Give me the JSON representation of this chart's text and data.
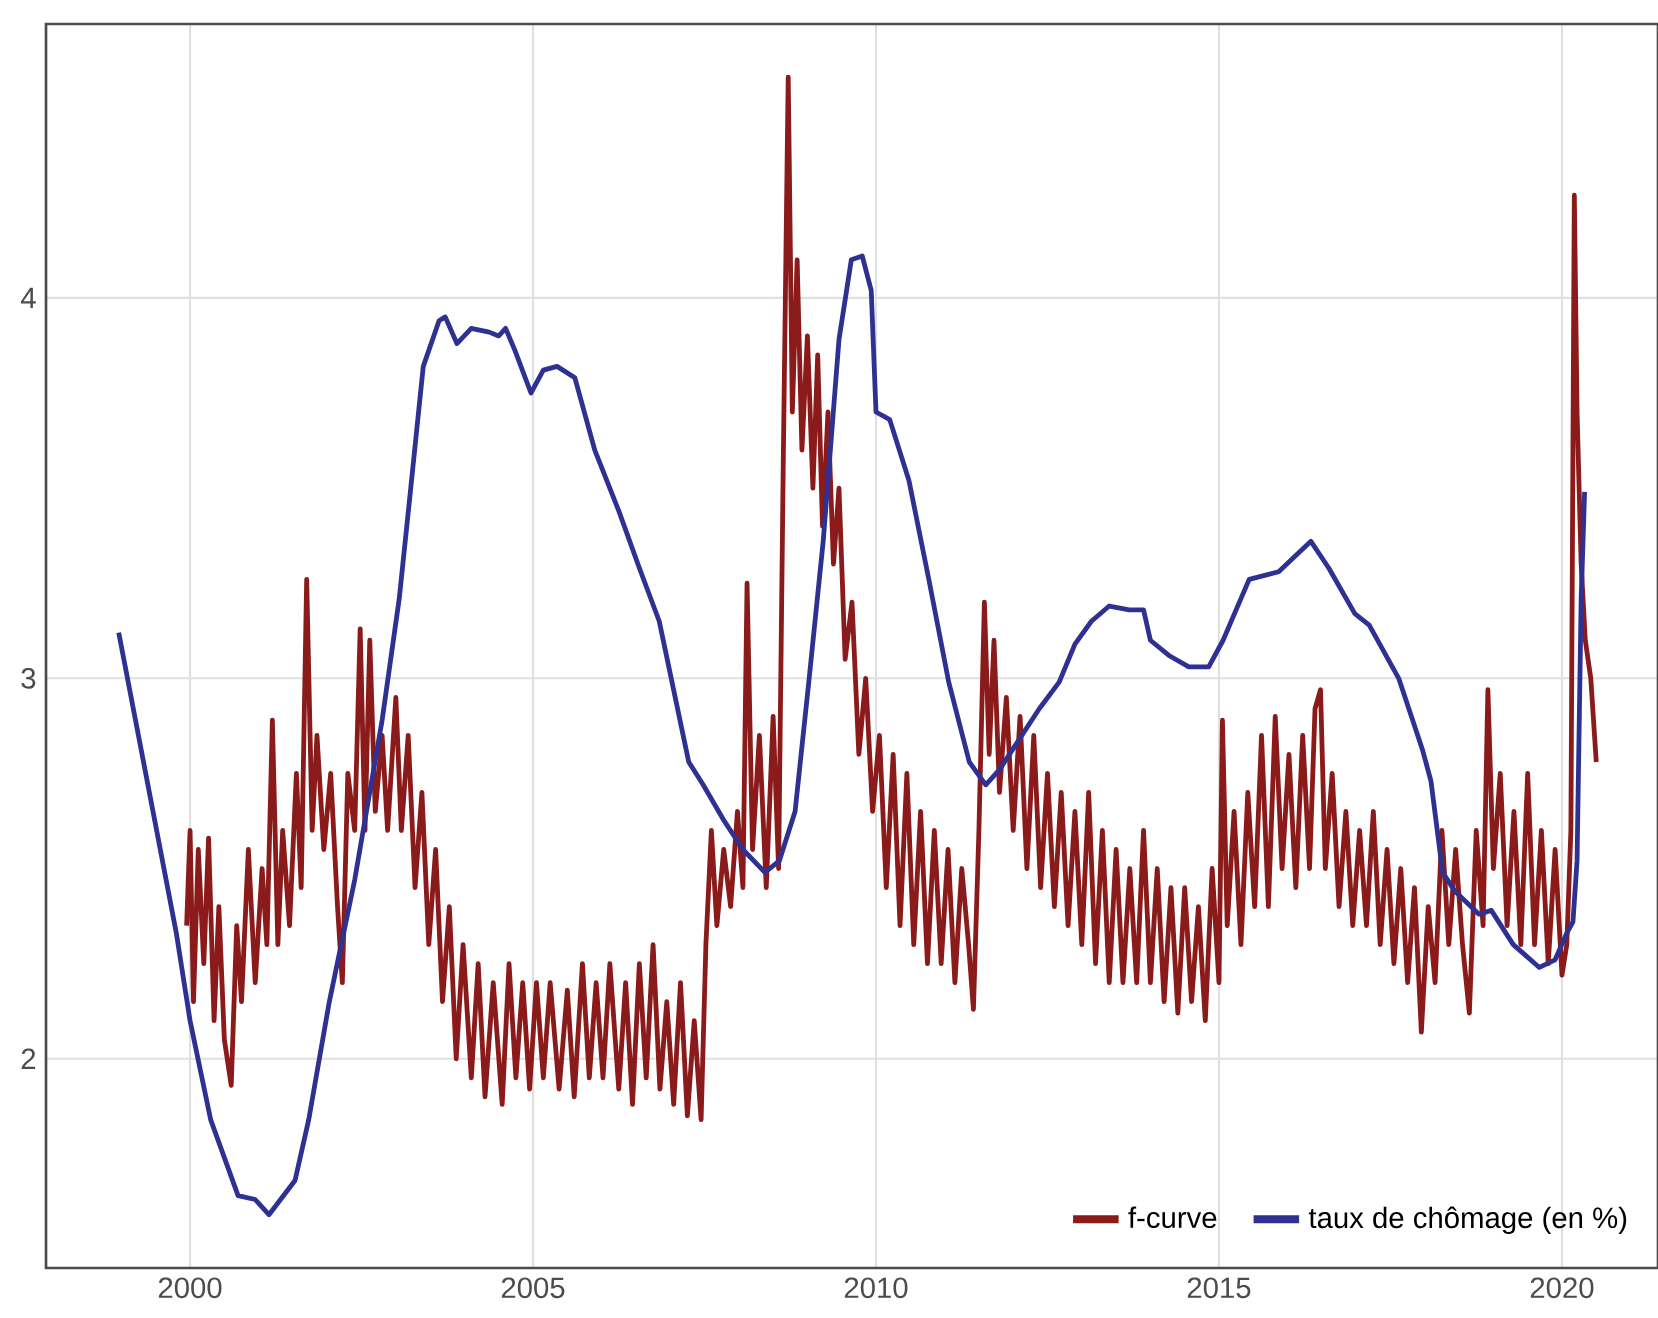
{
  "chart_data": {
    "type": "line",
    "xlim": [
      1997.9,
      2021.4
    ],
    "ylim": [
      1.45,
      4.72
    ],
    "xticks": [
      2000,
      2005,
      2010,
      2015,
      2020
    ],
    "yticks": [
      2,
      3,
      4
    ],
    "grid": true,
    "legend": "bottom right",
    "marker": "none",
    "line_style": "solid",
    "series": [
      {
        "name": "f-curve",
        "color": "#8b1a1a",
        "x": [
          1999.95,
          2000.0,
          2000.05,
          2000.12,
          2000.2,
          2000.27,
          2000.35,
          2000.42,
          2000.5,
          2000.6,
          2000.68,
          2000.75,
          2000.85,
          2000.95,
          2001.05,
          2001.12,
          2001.2,
          2001.28,
          2001.35,
          2001.45,
          2001.55,
          2001.62,
          2001.7,
          2001.78,
          2001.85,
          2001.95,
          2002.05,
          2002.15,
          2002.22,
          2002.3,
          2002.4,
          2002.48,
          2002.55,
          2002.62,
          2002.7,
          2002.8,
          2002.88,
          2003.0,
          2003.08,
          2003.18,
          2003.28,
          2003.38,
          2003.48,
          2003.58,
          2003.68,
          2003.78,
          2003.88,
          2003.98,
          2004.1,
          2004.2,
          2004.3,
          2004.42,
          2004.55,
          2004.65,
          2004.75,
          2004.85,
          2004.95,
          2005.05,
          2005.15,
          2005.25,
          2005.38,
          2005.5,
          2005.6,
          2005.72,
          2005.82,
          2005.92,
          2006.02,
          2006.12,
          2006.25,
          2006.35,
          2006.45,
          2006.55,
          2006.65,
          2006.75,
          2006.85,
          2006.95,
          2007.05,
          2007.15,
          2007.25,
          2007.35,
          2007.45,
          2007.52,
          2007.6,
          2007.68,
          2007.78,
          2007.88,
          2007.98,
          2008.06,
          2008.12,
          2008.2,
          2008.3,
          2008.4,
          2008.5,
          2008.58,
          2008.65,
          2008.72,
          2008.78,
          2008.85,
          2008.92,
          2009.0,
          2009.08,
          2009.15,
          2009.22,
          2009.3,
          2009.38,
          2009.46,
          2009.55,
          2009.65,
          2009.75,
          2009.85,
          2009.95,
          2010.05,
          2010.15,
          2010.25,
          2010.35,
          2010.45,
          2010.55,
          2010.65,
          2010.75,
          2010.85,
          2010.95,
          2011.05,
          2011.15,
          2011.25,
          2011.35,
          2011.42,
          2011.5,
          2011.58,
          2011.65,
          2011.72,
          2011.8,
          2011.9,
          2012.0,
          2012.1,
          2012.2,
          2012.3,
          2012.4,
          2012.5,
          2012.6,
          2012.7,
          2012.8,
          2012.9,
          2013.0,
          2013.1,
          2013.2,
          2013.3,
          2013.4,
          2013.5,
          2013.6,
          2013.7,
          2013.8,
          2013.9,
          2014.0,
          2014.1,
          2014.2,
          2014.3,
          2014.4,
          2014.5,
          2014.6,
          2014.7,
          2014.8,
          2014.9,
          2015.0,
          2015.05,
          2015.12,
          2015.22,
          2015.32,
          2015.42,
          2015.52,
          2015.62,
          2015.72,
          2015.82,
          2015.92,
          2016.02,
          2016.12,
          2016.22,
          2016.32,
          2016.4,
          2016.48,
          2016.55,
          2016.65,
          2016.75,
          2016.85,
          2016.95,
          2017.05,
          2017.15,
          2017.25,
          2017.35,
          2017.45,
          2017.55,
          2017.65,
          2017.75,
          2017.85,
          2017.95,
          2018.05,
          2018.15,
          2018.25,
          2018.35,
          2018.45,
          2018.55,
          2018.65,
          2018.75,
          2018.85,
          2018.92,
          2019.0,
          2019.1,
          2019.2,
          2019.3,
          2019.4,
          2019.5,
          2019.6,
          2019.7,
          2019.8,
          2019.9,
          2020.0,
          2020.07,
          2020.13,
          2020.18,
          2020.22,
          2020.28,
          2020.34,
          2020.42,
          2020.5
        ],
        "values": [
          2.35,
          2.6,
          2.15,
          2.55,
          2.25,
          2.58,
          2.1,
          2.4,
          2.05,
          1.93,
          2.35,
          2.15,
          2.55,
          2.2,
          2.5,
          2.3,
          2.89,
          2.3,
          2.6,
          2.35,
          2.75,
          2.45,
          3.26,
          2.6,
          2.85,
          2.55,
          2.75,
          2.4,
          2.2,
          2.75,
          2.6,
          3.13,
          2.6,
          3.1,
          2.65,
          2.85,
          2.6,
          2.95,
          2.6,
          2.85,
          2.45,
          2.7,
          2.3,
          2.55,
          2.15,
          2.4,
          2.0,
          2.3,
          1.95,
          2.25,
          1.9,
          2.2,
          1.88,
          2.25,
          1.95,
          2.2,
          1.92,
          2.2,
          1.95,
          2.2,
          1.92,
          2.18,
          1.9,
          2.25,
          1.95,
          2.2,
          1.95,
          2.25,
          1.92,
          2.2,
          1.88,
          2.25,
          1.95,
          2.3,
          1.92,
          2.15,
          1.88,
          2.2,
          1.85,
          2.1,
          1.84,
          2.3,
          2.6,
          2.35,
          2.55,
          2.4,
          2.65,
          2.45,
          3.25,
          2.55,
          2.85,
          2.45,
          2.9,
          2.5,
          3.6,
          4.58,
          3.7,
          4.1,
          3.6,
          3.9,
          3.5,
          3.85,
          3.4,
          3.7,
          3.3,
          3.5,
          3.05,
          3.2,
          2.8,
          3.0,
          2.65,
          2.85,
          2.45,
          2.8,
          2.35,
          2.75,
          2.3,
          2.65,
          2.25,
          2.6,
          2.25,
          2.55,
          2.2,
          2.5,
          2.3,
          2.13,
          2.6,
          3.2,
          2.8,
          3.1,
          2.7,
          2.95,
          2.6,
          2.9,
          2.5,
          2.85,
          2.45,
          2.75,
          2.4,
          2.7,
          2.35,
          2.65,
          2.3,
          2.7,
          2.25,
          2.6,
          2.2,
          2.55,
          2.2,
          2.5,
          2.2,
          2.6,
          2.2,
          2.5,
          2.15,
          2.45,
          2.12,
          2.45,
          2.15,
          2.4,
          2.1,
          2.5,
          2.2,
          2.89,
          2.35,
          2.65,
          2.3,
          2.7,
          2.4,
          2.85,
          2.4,
          2.9,
          2.5,
          2.8,
          2.45,
          2.85,
          2.5,
          2.92,
          2.97,
          2.5,
          2.75,
          2.4,
          2.65,
          2.35,
          2.6,
          2.35,
          2.65,
          2.3,
          2.55,
          2.25,
          2.5,
          2.2,
          2.45,
          2.07,
          2.4,
          2.2,
          2.6,
          2.3,
          2.55,
          2.3,
          2.12,
          2.6,
          2.35,
          2.97,
          2.5,
          2.75,
          2.35,
          2.65,
          2.3,
          2.75,
          2.3,
          2.6,
          2.25,
          2.55,
          2.22,
          2.3,
          2.6,
          4.27,
          3.7,
          3.3,
          3.1,
          3.0,
          2.78
        ]
      },
      {
        "name": "taux de chômage (en %)",
        "color": "#2e3192",
        "x": [
          1998.96,
          1999.8,
          2000.0,
          2000.3,
          2000.7,
          2000.95,
          2001.15,
          2001.53,
          2001.73,
          2002.03,
          2002.4,
          2002.8,
          2003.05,
          2003.2,
          2003.4,
          2003.63,
          2003.72,
          2003.89,
          2004.1,
          2004.36,
          2004.5,
          2004.6,
          2004.74,
          2004.97,
          2005.15,
          2005.35,
          2005.61,
          2005.9,
          2006.25,
          2006.55,
          2006.84,
          2007.27,
          2007.48,
          2007.77,
          2008.06,
          2008.38,
          2008.59,
          2008.82,
          2009.02,
          2009.23,
          2009.46,
          2009.64,
          2009.8,
          2009.93,
          2010.0,
          2010.2,
          2010.48,
          2010.77,
          2011.06,
          2011.36,
          2011.6,
          2011.8,
          2012.09,
          2012.38,
          2012.67,
          2012.9,
          2013.14,
          2013.4,
          2013.69,
          2013.9,
          2014.0,
          2014.27,
          2014.56,
          2014.85,
          2015.06,
          2015.44,
          2015.87,
          2016.22,
          2016.34,
          2016.6,
          2016.98,
          2017.19,
          2017.62,
          2017.97,
          2018.09,
          2018.26,
          2018.44,
          2018.79,
          2018.97,
          2019.29,
          2019.67,
          2019.9,
          2020.07,
          2020.16,
          2020.22,
          2020.28,
          2020.33
        ],
        "values": [
          3.12,
          2.33,
          2.1,
          1.84,
          1.64,
          1.63,
          1.59,
          1.68,
          1.84,
          2.15,
          2.47,
          2.89,
          3.21,
          3.47,
          3.82,
          3.94,
          3.95,
          3.88,
          3.92,
          3.91,
          3.9,
          3.92,
          3.86,
          3.75,
          3.81,
          3.82,
          3.79,
          3.6,
          3.44,
          3.29,
          3.15,
          2.78,
          2.72,
          2.63,
          2.55,
          2.49,
          2.52,
          2.65,
          2.99,
          3.36,
          3.89,
          4.1,
          4.11,
          4.02,
          3.7,
          3.68,
          3.52,
          3.26,
          2.99,
          2.78,
          2.72,
          2.76,
          2.84,
          2.92,
          2.99,
          3.09,
          3.15,
          3.19,
          3.18,
          3.18,
          3.1,
          3.06,
          3.03,
          3.03,
          3.1,
          3.26,
          3.28,
          3.34,
          3.36,
          3.29,
          3.17,
          3.14,
          3.0,
          2.81,
          2.73,
          2.49,
          2.44,
          2.38,
          2.39,
          2.3,
          2.24,
          2.26,
          2.33,
          2.36,
          2.52,
          3.21,
          3.49
        ]
      }
    ]
  }
}
